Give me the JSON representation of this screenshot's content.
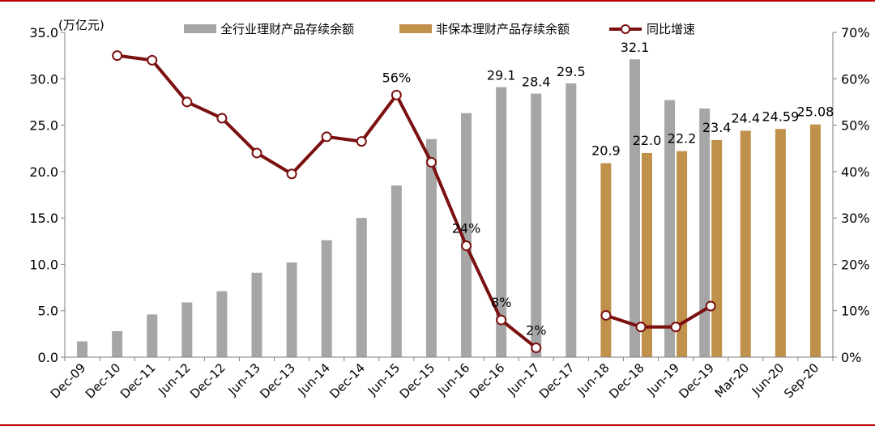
{
  "chart_data": {
    "type": "bar+line",
    "unit_label": "(万亿元)",
    "categories": [
      "Dec-09",
      "Dec-10",
      "Dec-11",
      "Jun-12",
      "Dec-12",
      "Jun-13",
      "Dec-13",
      "Jun-14",
      "Dec-14",
      "Jun-15",
      "Dec-15",
      "Jun-16",
      "Dec-16",
      "Jun-17",
      "Dec-17",
      "Jun-18",
      "Dec-18",
      "Jun-19",
      "Dec-19",
      "Mar-20",
      "Jun-20",
      "Sep-20"
    ],
    "y_left": {
      "min": 0,
      "max": 35,
      "ticks": [
        "0.0",
        "5.0",
        "10.0",
        "15.0",
        "20.0",
        "25.0",
        "30.0",
        "35.0"
      ]
    },
    "y_right": {
      "min": 0,
      "max": 70,
      "ticks": [
        "0%",
        "10%",
        "20%",
        "30%",
        "40%",
        "50%",
        "60%",
        "70%"
      ]
    },
    "legend_position": "top",
    "grid": false,
    "colors": {
      "series1": "#a6a6a6",
      "series2": "#c0914b",
      "series3": "#7b1010",
      "frame": "#c00000"
    },
    "series": [
      {
        "name": "全行业理财产品存续余额",
        "kind": "bar",
        "axis": "left",
        "values": [
          1.7,
          2.8,
          4.6,
          5.9,
          7.1,
          9.1,
          10.2,
          12.6,
          15.0,
          18.5,
          23.5,
          26.3,
          29.1,
          28.4,
          29.5,
          null,
          32.1,
          27.7,
          26.8,
          null,
          null,
          null
        ],
        "labels": [
          "",
          "",
          "",
          "",
          "",
          "",
          "",
          "",
          "",
          "",
          "",
          "",
          "29.1",
          "28.4",
          "29.5",
          "",
          "32.1",
          "",
          "",
          "",
          "",
          ""
        ]
      },
      {
        "name": "非保本理财产品存续余额",
        "kind": "bar",
        "axis": "left",
        "values": [
          null,
          null,
          null,
          null,
          null,
          null,
          null,
          null,
          null,
          null,
          null,
          null,
          null,
          null,
          null,
          20.9,
          22.0,
          22.2,
          23.4,
          24.4,
          24.59,
          25.08
        ],
        "labels": [
          "",
          "",
          "",
          "",
          "",
          "",
          "",
          "",
          "",
          "",
          "",
          "",
          "",
          "",
          "",
          "20.9",
          "22.0",
          "22.2",
          "23.4",
          "24.4",
          "24.59",
          "25.08"
        ]
      },
      {
        "name": "同比增速",
        "kind": "line",
        "axis": "right",
        "values": [
          null,
          65,
          64,
          55,
          51.5,
          44,
          39.5,
          47.5,
          46.5,
          56.5,
          42,
          24,
          8,
          2,
          null,
          9,
          6.5,
          6.5,
          11,
          null,
          null,
          null
        ],
        "labels": [
          "",
          "",
          "",
          "",
          "",
          "",
          "",
          "",
          "",
          "56%",
          "",
          "24%",
          "8%",
          "2%",
          "",
          "",
          "",
          "",
          "",
          "",
          "",
          ""
        ]
      }
    ]
  }
}
